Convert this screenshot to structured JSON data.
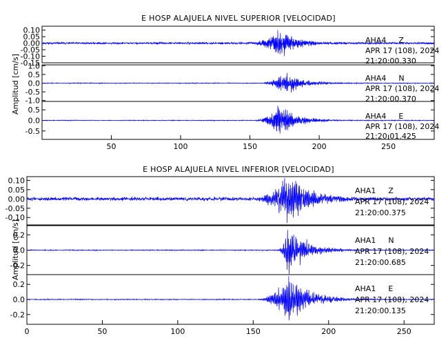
{
  "chart_data": [
    {
      "type": "line",
      "title": "E HOSP ALAJUELA NIVEL SUPERIOR [VELOCIDAD]",
      "ylabel": "Amplitud [cm/s]",
      "xlabel": "",
      "xlim": [
        0,
        283
      ],
      "x_ticks": [
        50,
        100,
        150,
        200,
        250
      ],
      "line_color": "#0000ff",
      "grid": false,
      "panels": [
        {
          "station": "AHA4",
          "component": "Z",
          "date": "APR 17 (108), 2024",
          "time": "21:20:00.330",
          "ylim": [
            -0.15,
            0.13
          ],
          "y_ticks": [
            0.1,
            0.05,
            0.0,
            -0.05,
            -0.1,
            -0.15
          ],
          "y_tick_labels": [
            "0.10",
            "0.05",
            "0.00",
            "-0.05",
            "-0.10",
            "-0.15"
          ],
          "signal": {
            "noise": 0.005,
            "onset": 147,
            "peak_time": 171,
            "peak_amp": 0.1,
            "decay": 13,
            "freq": 1.6,
            "seed": 11
          }
        },
        {
          "station": "AHA4",
          "component": "N",
          "date": "APR 17 (108), 2024",
          "time": "21:20:00.370",
          "ylim": [
            -1.05,
            1.05
          ],
          "y_ticks": [
            1.0,
            0.5,
            0.0,
            -0.5,
            -1.0
          ],
          "y_tick_labels": [
            "1.0",
            "0.5",
            "0.0",
            "-0.5",
            "-1.0"
          ],
          "signal": {
            "noise": 0.015,
            "onset": 155,
            "peak_time": 175,
            "peak_amp": 0.55,
            "decay": 14,
            "freq": 1.5,
            "seed": 23
          }
        },
        {
          "station": "AHA4",
          "component": "E",
          "date": "APR 17 (108), 2024",
          "time": "21:20:01.425",
          "ylim": [
            -0.9,
            0.9
          ],
          "y_ticks": [
            0.5,
            0.0,
            -0.5
          ],
          "y_tick_labels": [
            "0.5",
            "0.0",
            "-0.5"
          ],
          "signal": {
            "noise": 0.012,
            "onset": 150,
            "peak_time": 171,
            "peak_amp": 0.7,
            "decay": 13,
            "freq": 1.6,
            "seed": 37
          }
        }
      ]
    },
    {
      "type": "line",
      "title": "E HOSP ALAJUELA NIVEL INFERIOR [VELOCIDAD]",
      "ylabel": "Amplitud [cm/s]",
      "xlabel": "",
      "xlim": [
        0,
        270
      ],
      "x_ticks": [
        0,
        50,
        100,
        150,
        200,
        250
      ],
      "line_color": "#0000ff",
      "grid": false,
      "panels": [
        {
          "station": "AHA1",
          "component": "Z",
          "date": "APR 17 (108), 2024",
          "time": "21:20:00.375",
          "ylim": [
            -0.14,
            0.12
          ],
          "y_ticks": [
            0.1,
            0.05,
            0.0,
            -0.05,
            -0.1
          ],
          "y_tick_labels": [
            "0.10",
            "0.05",
            "0.00",
            "-0.05",
            "-0.10"
          ],
          "signal": {
            "noise": 0.006,
            "onset": 146,
            "peak_time": 173,
            "peak_amp": 0.12,
            "decay": 16,
            "freq": 1.5,
            "seed": 51
          }
        },
        {
          "station": "AHA1",
          "component": "N",
          "date": "APR 17 (108), 2024",
          "time": "21:20:00.685",
          "ylim": [
            -0.32,
            0.32
          ],
          "y_ticks": [
            0.2,
            0.0,
            -0.2
          ],
          "y_tick_labels": [
            "0.2",
            "0.0",
            "-0.2"
          ],
          "signal": {
            "noise": 0.004,
            "onset": 165,
            "peak_time": 173,
            "peak_amp": 0.3,
            "decay": 12,
            "freq": 1.5,
            "seed": 67
          }
        },
        {
          "station": "AHA1",
          "component": "E",
          "date": "APR 17 (108), 2024",
          "time": "21:20:00.135",
          "ylim": [
            -0.33,
            0.33
          ],
          "y_ticks": [
            0.2,
            0.0,
            -0.2
          ],
          "y_tick_labels": [
            "0.2",
            "0.0",
            "-0.2"
          ],
          "signal": {
            "noise": 0.004,
            "onset": 150,
            "peak_time": 174,
            "peak_amp": 0.3,
            "decay": 14,
            "freq": 1.5,
            "seed": 83
          }
        }
      ]
    }
  ]
}
